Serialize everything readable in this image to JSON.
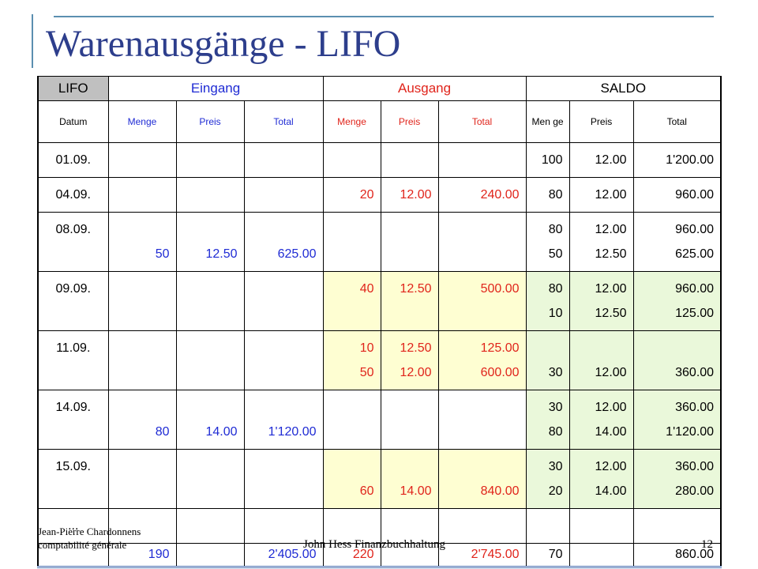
{
  "slide": {
    "title": "Warenausgänge - LIFO",
    "footer_left_line1": "Jean-Pierre Chardonnens",
    "footer_left_line2": "comptabilité générale",
    "footer_center": "John Hess Finanzbuchhaltung",
    "page_number": "12"
  },
  "table": {
    "header_groups": [
      "LIFO",
      "Eingang",
      "Ausgang",
      "SALDO"
    ],
    "subheaders": [
      "Datum",
      "Menge",
      "Preis",
      "Total",
      "Menge",
      "Preis",
      "Total",
      "Men ge",
      "Preis",
      "Total"
    ],
    "rows": [
      {
        "date": "01.09.",
        "in": [
          [],
          [],
          []
        ],
        "out": [
          [],
          [],
          []
        ],
        "saldo": [
          [
            "100"
          ],
          [
            "12.00"
          ],
          [
            "1'200.00"
          ]
        ]
      },
      {
        "date": "04.09.",
        "in": [
          [],
          [],
          []
        ],
        "out": [
          [
            "20"
          ],
          [
            "12.00"
          ],
          [
            "240.00"
          ]
        ],
        "saldo": [
          [
            "80"
          ],
          [
            "12.00"
          ],
          [
            "960.00"
          ]
        ]
      },
      {
        "date": "08.09.",
        "in": [
          [
            "",
            "50"
          ],
          [
            "",
            "12.50"
          ],
          [
            "",
            "625.00"
          ]
        ],
        "out": [
          [],
          [],
          []
        ],
        "saldo": [
          [
            "80",
            "50"
          ],
          [
            "12.00",
            "12.50"
          ],
          [
            "960.00",
            "625.00"
          ]
        ]
      },
      {
        "date": "09.09.",
        "in": [
          [],
          [],
          []
        ],
        "out": [
          [
            "40"
          ],
          [
            "12.50"
          ],
          [
            "500.00"
          ]
        ],
        "saldo": [
          [
            "80",
            "10"
          ],
          [
            "12.00",
            "12.50"
          ],
          [
            "960.00",
            "125.00"
          ]
        ]
      },
      {
        "date": "11.09.",
        "in": [
          [],
          [],
          []
        ],
        "out": [
          [
            "10",
            "50"
          ],
          [
            "12.50",
            "12.00"
          ],
          [
            "125.00",
            "600.00"
          ]
        ],
        "saldo": [
          [
            "",
            "30"
          ],
          [
            "",
            "12.00"
          ],
          [
            "",
            "360.00"
          ]
        ]
      },
      {
        "date": "14.09.",
        "in": [
          [
            "",
            "80"
          ],
          [
            "",
            "14.00"
          ],
          [
            "",
            "1'120.00"
          ]
        ],
        "out": [
          [],
          [],
          []
        ],
        "saldo": [
          [
            "30",
            "80"
          ],
          [
            "12.00",
            "14.00"
          ],
          [
            "360.00",
            "1'120.00"
          ]
        ]
      },
      {
        "date": "15.09.",
        "in": [
          [],
          [],
          []
        ],
        "out": [
          [
            "",
            "60"
          ],
          [
            "",
            "14.00"
          ],
          [
            "",
            "840.00"
          ]
        ],
        "saldo": [
          [
            "30",
            "20"
          ],
          [
            "12.00",
            "14.00"
          ],
          [
            "360.00",
            "280.00"
          ]
        ]
      },
      {
        "date": "...",
        "in": [
          [],
          [],
          []
        ],
        "out": [
          [],
          [],
          []
        ],
        "saldo": [
          [],
          [],
          []
        ]
      }
    ],
    "totals": {
      "in_qty": "190",
      "in_total": "2'405.00",
      "out_qty": "220",
      "out_total": "2'745.00",
      "saldo_qty": "70",
      "saldo_total": "860.00"
    }
  },
  "colors": {
    "title": "#2d3e8c",
    "header_grey": "#c0c0c0",
    "blue_text": "#1f2bd4",
    "red_text": "#e0241b",
    "ausgang_highlight": "#fefed2",
    "saldo_highlight": "#eaf8da"
  }
}
